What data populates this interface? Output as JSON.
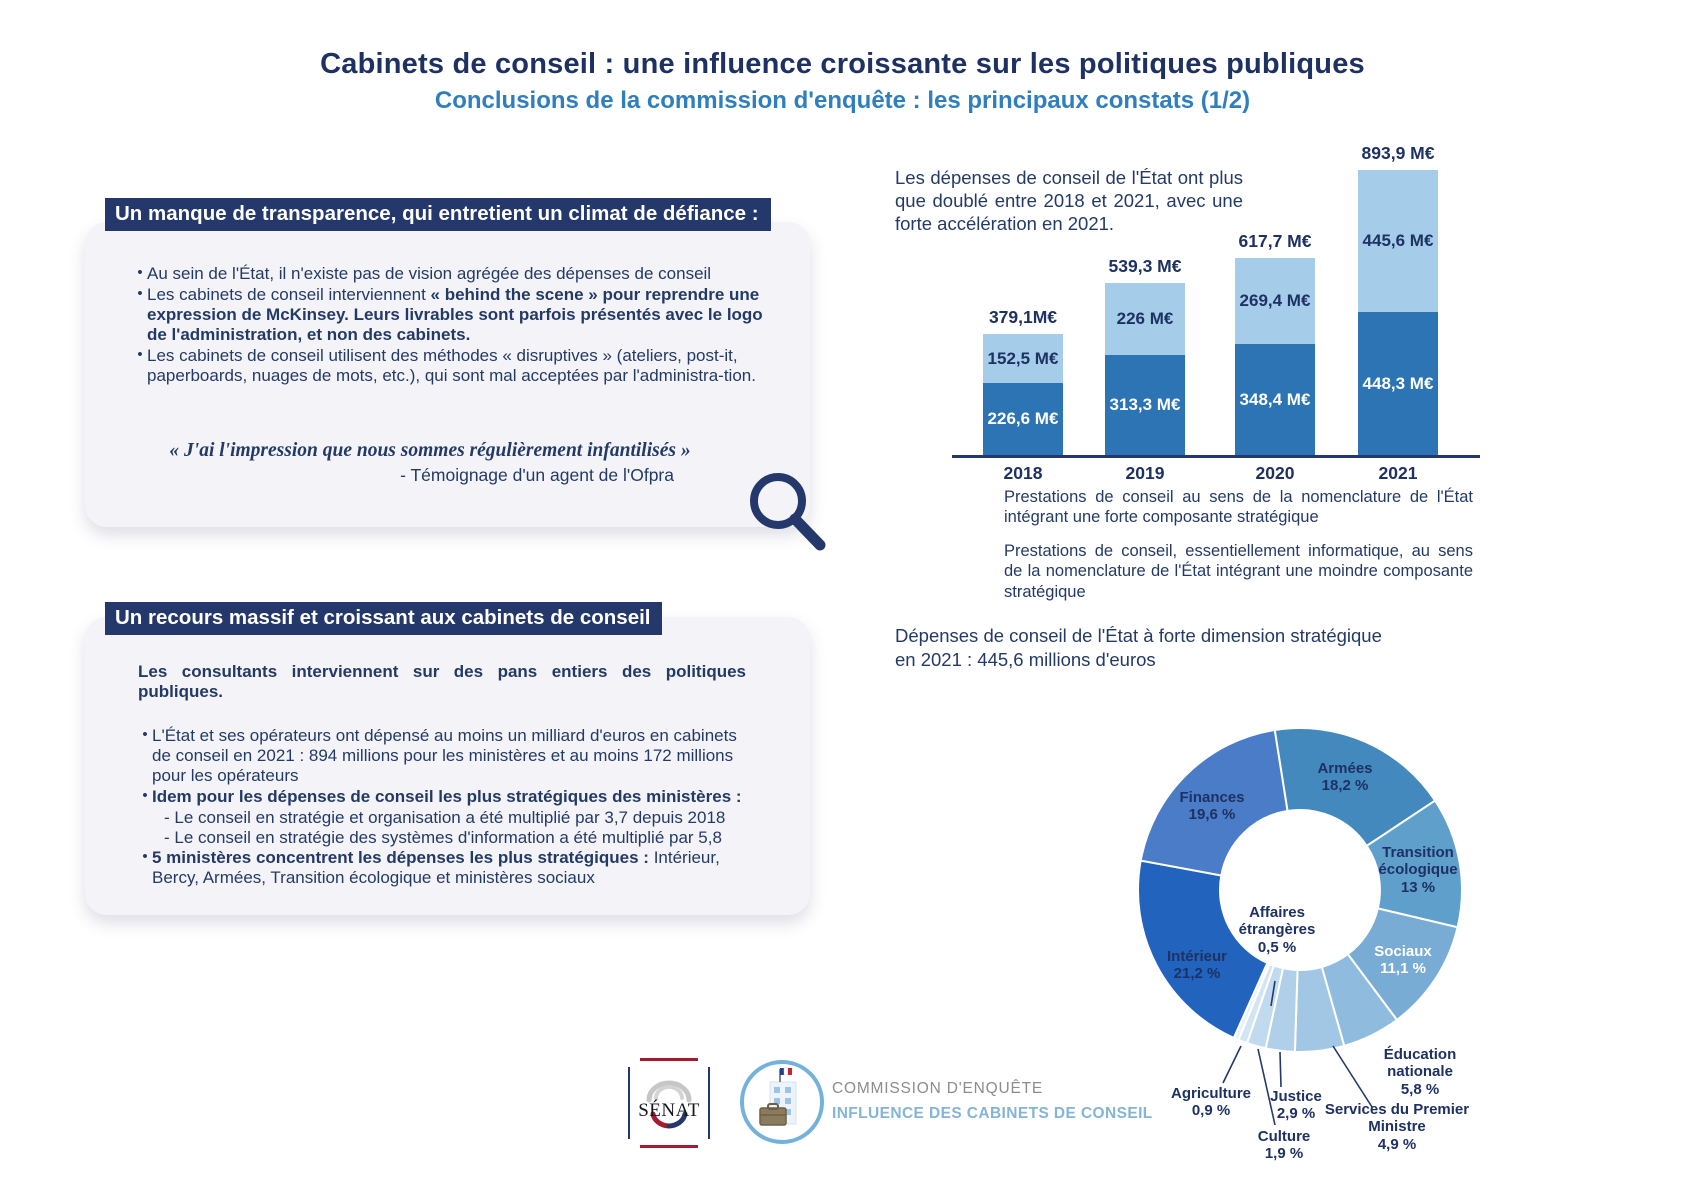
{
  "title": "Cabinets de conseil : une influence croissante sur les politiques publiques",
  "subtitle": "Conclusions de la commission d'enquête : les principaux constats (1/2)",
  "box1": {
    "header": "Un manque de transparence, qui entretient un climat de défiance :",
    "bullets": [
      [
        {
          "t": "Au sein de l'État, il n'existe pas de vision agrégée des dépenses de conseil",
          "b": false
        }
      ],
      [
        {
          "t": "Les cabinets de conseil interviennent ",
          "b": false
        },
        {
          "t": "« behind the scene » pour reprendre une expression de McKinsey. Leurs livrables sont parfois présentés avec le logo de l'administration, et non des cabinets.",
          "b": true
        }
      ],
      [
        {
          "t": "Les cabinets de conseil utilisent des méthodes « disruptives » (ateliers, post-it, paperboards, nuages de mots, etc.), qui sont mal acceptées par l'administra-tion.",
          "b": false
        }
      ]
    ],
    "quote": "« J'ai l'impression que nous sommes régulièrement infantilisés »",
    "attribution": "- Témoignage d'un agent de l'Ofpra"
  },
  "box2": {
    "header": "Un recours massif et croissant aux cabinets de conseil",
    "intro": "Les consultants interviennent sur des pans entiers des politiques publiques.",
    "bullets": [
      [
        {
          "t": "L'État et ses opérateurs ont dépensé au moins un milliard d'euros en cabinets de conseil en 2021 : 894 millions pour les ministères et au moins 172 millions pour les opérateurs",
          "b": false
        }
      ],
      [
        {
          "t": "Idem pour les dépenses de conseil les plus stratégiques des ministères :",
          "b": true
        }
      ],
      [
        {
          "t": "5 ministères concentrent les dépenses les plus stratégiques : ",
          "b": true
        },
        {
          "t": "Intérieur, Bercy, Armées, Transition écologique et ministères sociaux",
          "b": false
        }
      ]
    ],
    "sub_bullets": [
      "- Le conseil en stratégie et organisation a été multiplié par 3,7 depuis 2018",
      "- Le conseil en stratégie des systèmes d'information a été multiplié par 5,8"
    ]
  },
  "bar_section": {
    "intro": "Les dépenses de conseil de l'État ont plus que doublé entre 2018 et 2021, avec une forte accélération en 2021.",
    "legend": [
      {
        "color": "#A5CDE9",
        "text": "Prestations de conseil au sens de la nomenclature de l'État intégrant une forte composante stratégique"
      },
      {
        "color": "#2C74B4",
        "text": "Prestations de conseil, essentiellement informatique, au sens de la nomenclature de l'État intégrant une moindre composante stratégique"
      }
    ]
  },
  "chart_data": [
    {
      "type": "bar",
      "stacked": true,
      "categories": [
        "2018",
        "2019",
        "2020",
        "2021"
      ],
      "series": [
        {
          "name": "Prestations de conseil à forte composante stratégique",
          "color": "#A5CDE9",
          "values": [
            152.5,
            226,
            269.4,
            445.6
          ],
          "labels": [
            "152,5 M€",
            "226 M€",
            "269,4 M€",
            "445,6 M€"
          ]
        },
        {
          "name": "Prestations de conseil à moindre composante stratégique (essentiellement informatique)",
          "color": "#2C74B4",
          "values": [
            226.6,
            313.3,
            348.4,
            448.3
          ],
          "labels": [
            "226,6 M€",
            "313,3 M€",
            "348,4 M€",
            "448,3 M€"
          ]
        }
      ],
      "totals": [
        379.1,
        539.3,
        617.7,
        893.9
      ],
      "total_labels": [
        "379,1M€",
        "539,3 M€",
        "617,7 M€",
        "893,9 M€"
      ],
      "unit": "M€",
      "legend_position": "bottom"
    },
    {
      "type": "pie",
      "donut": true,
      "title": "Dépenses de conseil de l'État à forte dimension stratégique en 2021 : 445,6 millions d'euros",
      "start_angle_deg": -9,
      "slices": [
        {
          "label": "Armées",
          "pct": 18.2,
          "pct_label": "18,2 %",
          "color": "#4489BE"
        },
        {
          "label": "Transition écologique",
          "pct": 13,
          "pct_label": "13 %",
          "color": "#5E9FCC"
        },
        {
          "label": "Sociaux",
          "pct": 11.1,
          "pct_label": "11,1 %",
          "color": "#79ACD4"
        },
        {
          "label": "Éducation nationale",
          "pct": 5.8,
          "pct_label": "5,8 %",
          "color": "#8FBCDE"
        },
        {
          "label": "Services du Premier Ministre",
          "pct": 4.9,
          "pct_label": "4,9 %",
          "color": "#A2C7E4"
        },
        {
          "label": "Justice",
          "pct": 2.9,
          "pct_label": "2,9 %",
          "color": "#B0CFE8"
        },
        {
          "label": "Culture",
          "pct": 1.9,
          "pct_label": "1,9 %",
          "color": "#C2DAEE"
        },
        {
          "label": "Agriculture",
          "pct": 0.9,
          "pct_label": "0,9 %",
          "color": "#D3E4F3"
        },
        {
          "label": "Affaires étrangères",
          "pct": 0.5,
          "pct_label": "0,5 %",
          "color": "#E8F1F9"
        },
        {
          "label": "Intérieur",
          "pct": 21.2,
          "pct_label": "21,2 %",
          "color": "#2263BE"
        },
        {
          "label": "Finances",
          "pct": 19.6,
          "pct_label": "19,6 %",
          "color": "#4A7CC8"
        }
      ]
    }
  ],
  "footer": {
    "senat": "SÉNAT",
    "commission_line1": "COMMISSION D'ENQUÊTE",
    "commission_line2": "INFLUENCE DES CABINETS DE CONSEIL"
  },
  "colors": {
    "title_navy": "#1E3163",
    "subtitle_blue": "#2F7FBF",
    "header_bar_navy": "#24386B",
    "panel_bg": "#F4F4F8",
    "bar_light_blue": "#A5CDE9",
    "bar_dark_blue": "#2C74B4",
    "senat_red": "#A51C30",
    "commission_light_blue": "#85B4D6"
  }
}
